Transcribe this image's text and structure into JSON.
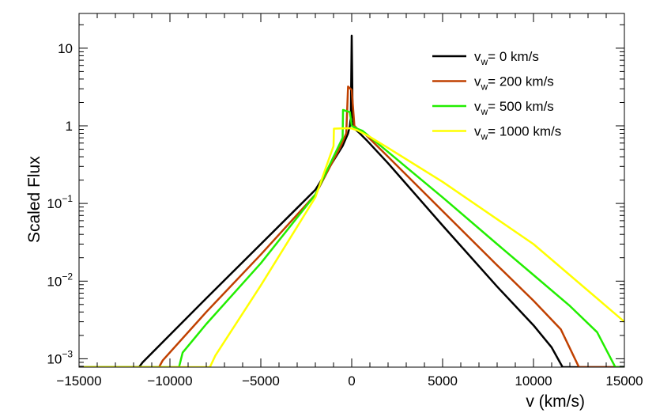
{
  "chart_data": {
    "type": "line",
    "title": "",
    "xlabel": "v (km/s)",
    "ylabel": "Scaled Flux",
    "xlim": [
      -15000,
      15000
    ],
    "ylim": [
      0.00078,
      28
    ],
    "yscale": "log",
    "grid": false,
    "legend_position": "top-right",
    "x_ticks": [
      {
        "v": -15000,
        "label": "−15000"
      },
      {
        "v": -10000,
        "label": "−10000"
      },
      {
        "v": -5000,
        "label": "−5000"
      },
      {
        "v": 0,
        "label": "0"
      },
      {
        "v": 5000,
        "label": "5000"
      },
      {
        "v": 10000,
        "label": "10000"
      },
      {
        "v": 15000,
        "label": "15000"
      }
    ],
    "y_ticks": [
      {
        "v": 0.001,
        "base": "10",
        "exp": "−3"
      },
      {
        "v": 0.01,
        "base": "10",
        "exp": "−2"
      },
      {
        "v": 0.1,
        "base": "10",
        "exp": "−1"
      },
      {
        "v": 1,
        "base": "1",
        "exp": ""
      },
      {
        "v": 10,
        "base": "10",
        "exp": ""
      }
    ],
    "series": [
      {
        "name": "0 km/s",
        "color": "#000000",
        "x": [
          -15000,
          -11700,
          -11500,
          -8000,
          -5000,
          -2000,
          -500,
          -200,
          -100,
          -50,
          0,
          50,
          100,
          200,
          400,
          800,
          2000,
          5000,
          8000,
          10000,
          11000,
          11600,
          15000
        ],
        "y": [
          0.00078,
          0.00078,
          0.0009,
          0.006,
          0.03,
          0.15,
          0.55,
          0.8,
          1.0,
          1.3,
          14.5,
          1.3,
          1.0,
          0.9,
          0.82,
          0.66,
          0.33,
          0.052,
          0.0085,
          0.0027,
          0.0014,
          0.00078,
          0.00078
        ]
      },
      {
        "name": "200 km/s",
        "color": "#c04000",
        "x": [
          -15000,
          -10600,
          -10400,
          -8000,
          -5000,
          -2000,
          -600,
          -300,
          -200,
          0,
          150,
          300,
          600,
          2000,
          5000,
          8000,
          10000,
          11500,
          12500,
          15000
        ],
        "y": [
          0.00078,
          0.00078,
          0.00095,
          0.004,
          0.022,
          0.13,
          0.55,
          0.8,
          3.2,
          2.9,
          1.0,
          0.92,
          0.84,
          0.4,
          0.08,
          0.016,
          0.0056,
          0.0024,
          0.00078,
          0.00078
        ]
      },
      {
        "name": "500 km/s",
        "color": "#22ee00",
        "x": [
          -15000,
          -9500,
          -9300,
          -8000,
          -5000,
          -2000,
          -500,
          -480,
          -100,
          0,
          300,
          600,
          2000,
          5000,
          8000,
          10000,
          12000,
          13500,
          14500,
          15000
        ],
        "y": [
          0.00078,
          0.00078,
          0.0012,
          0.0028,
          0.017,
          0.13,
          0.7,
          1.6,
          1.5,
          1.0,
          0.92,
          0.86,
          0.46,
          0.12,
          0.03,
          0.012,
          0.0048,
          0.0022,
          0.00078,
          0.00078
        ]
      },
      {
        "name": "1000 km/s",
        "color": "#ffff00",
        "x": [
          -15000,
          -7800,
          -7500,
          -5000,
          -2000,
          -1000,
          -980,
          -400,
          -50,
          300,
          1000,
          2000,
          5000,
          10000,
          15000
        ],
        "y": [
          0.00078,
          0.00078,
          0.0011,
          0.0088,
          0.12,
          0.55,
          0.92,
          0.93,
          0.93,
          0.88,
          0.72,
          0.52,
          0.19,
          0.03,
          0.003
        ]
      }
    ]
  },
  "legend": {
    "prefix": "v",
    "subscript": "w",
    "separator": "= "
  }
}
